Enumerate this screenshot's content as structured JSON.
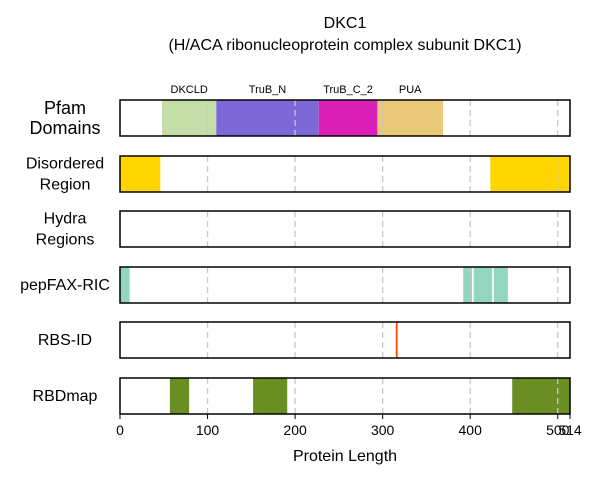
{
  "chart_data": {
    "type": "bar",
    "title_line1": "DKC1",
    "title_line2": "(H/ACA ribonucleoprotein complex subunit DKC1)",
    "xlabel": "Protein Length",
    "xlim": [
      0,
      514
    ],
    "xticks": [
      0,
      100,
      200,
      300,
      400,
      500,
      514
    ],
    "xtick_labels": [
      "0",
      "100",
      "200",
      "300",
      "400",
      "500",
      "514"
    ],
    "gridlines": [
      100,
      200,
      300,
      400,
      500
    ],
    "rows": [
      {
        "label_lines": [
          "Pfam",
          "Domains"
        ],
        "segments": [
          {
            "start": 48,
            "end": 110,
            "color": "#c5dea8",
            "label": "DKCLD"
          },
          {
            "start": 110,
            "end": 227,
            "color": "#7d68d7",
            "label": "TruB_N"
          },
          {
            "start": 227,
            "end": 294,
            "color": "#d91fb5",
            "label": "TruB_C_2"
          },
          {
            "start": 294,
            "end": 369,
            "color": "#e9c877",
            "label": "PUA"
          }
        ]
      },
      {
        "label_lines": [
          "Disordered",
          "Region"
        ],
        "segments": [
          {
            "start": 0,
            "end": 46,
            "color": "#ffd600"
          },
          {
            "start": 423,
            "end": 514,
            "color": "#ffd600"
          }
        ]
      },
      {
        "label_lines": [
          "Hydra",
          "Regions"
        ],
        "segments": []
      },
      {
        "label_lines": [
          "pepFAX-RIC"
        ],
        "segments": [
          {
            "start": 0,
            "end": 11,
            "color": "#93d6bf"
          },
          {
            "start": 392,
            "end": 402,
            "color": "#93d6bf"
          },
          {
            "start": 404,
            "end": 425,
            "color": "#93d6bf"
          },
          {
            "start": 427,
            "end": 443,
            "color": "#93d6bf"
          }
        ]
      },
      {
        "label_lines": [
          "RBS-ID"
        ],
        "segments": [
          {
            "start": 315,
            "end": 317,
            "color": "#ff4500"
          }
        ]
      },
      {
        "label_lines": [
          "RBDmap"
        ],
        "segments": [
          {
            "start": 57,
            "end": 79,
            "color": "#6b8e23"
          },
          {
            "start": 152,
            "end": 191,
            "color": "#6b8e23"
          },
          {
            "start": 448,
            "end": 514,
            "color": "#6b8e23"
          }
        ]
      }
    ]
  }
}
